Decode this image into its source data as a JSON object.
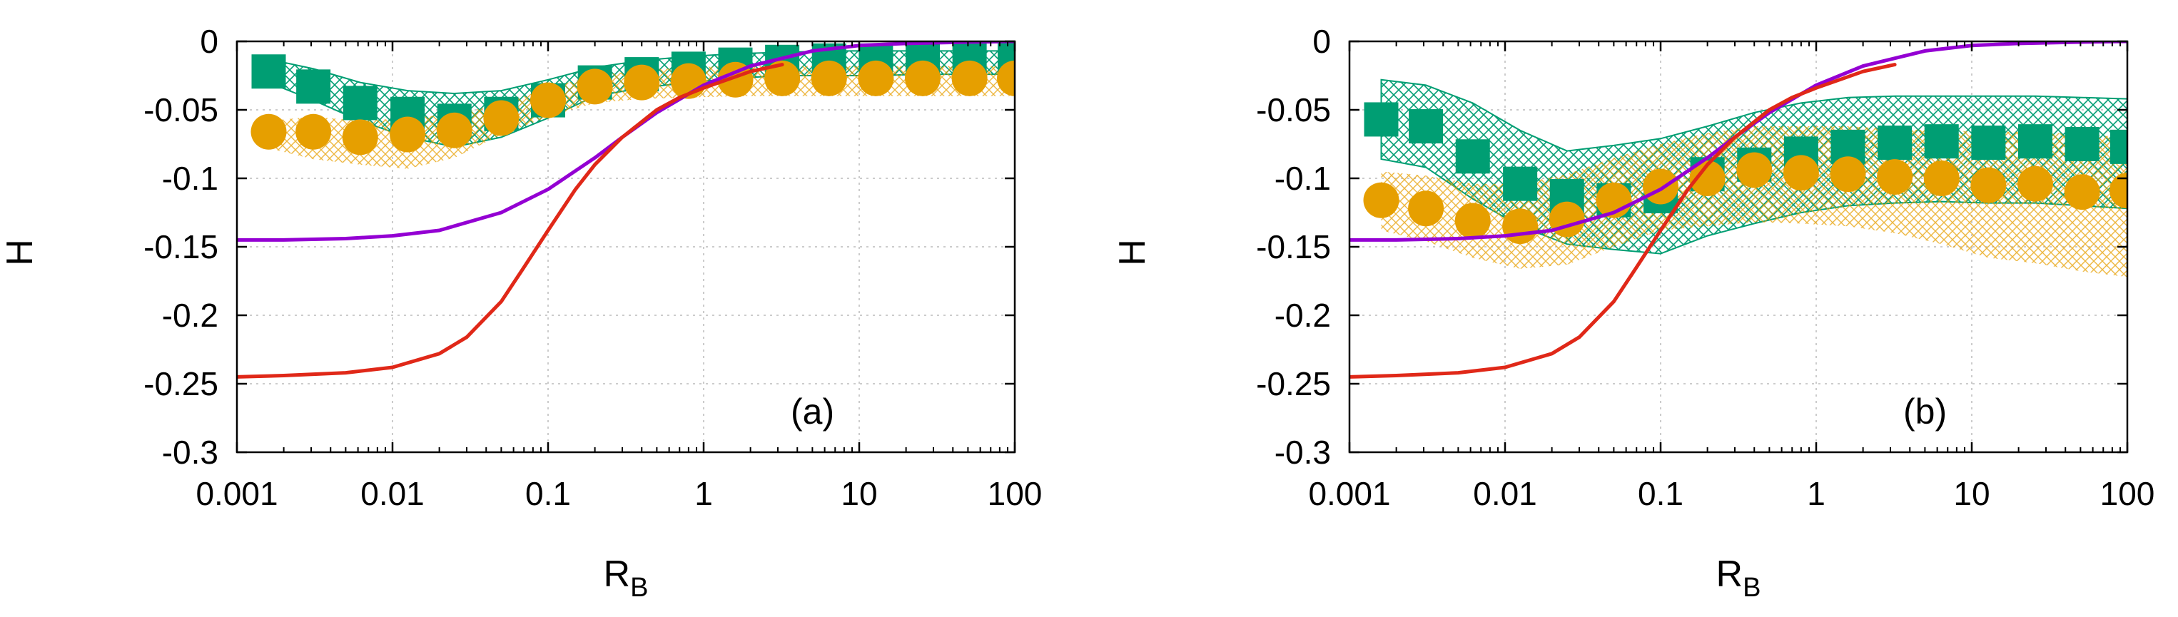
{
  "chart_data": [
    {
      "type": "line",
      "panel_label": "(a)",
      "xlabel": "R",
      "xlabel_sub": "B",
      "ylabel": "H",
      "xscale": "log",
      "xlim": [
        0.001,
        100
      ],
      "ylim": [
        -0.3,
        0
      ],
      "grid": true,
      "x_ticks": [
        "0.001",
        "0.01",
        "0.1",
        "1",
        "10",
        "100"
      ],
      "y_ticks": [
        "-0.3",
        "-0.25",
        "-0.2",
        "-0.15",
        "-0.1",
        "-0.05",
        "0"
      ],
      "series": [
        {
          "name": "green squares",
          "kind": "scatter-square",
          "color": "#009e73",
          "x": [
            0.0016,
            0.0031,
            0.0062,
            0.0125,
            0.025,
            0.05,
            0.1,
            0.2,
            0.4,
            0.8,
            1.6,
            3.2,
            6.4,
            12.8,
            25.6,
            51.2,
            100
          ],
          "y": [
            -0.022,
            -0.033,
            -0.045,
            -0.053,
            -0.058,
            -0.053,
            -0.043,
            -0.03,
            -0.024,
            -0.02,
            -0.017,
            -0.015,
            -0.014,
            -0.014,
            -0.013,
            -0.013,
            -0.013
          ]
        },
        {
          "name": "orange circles",
          "kind": "scatter-circle",
          "color": "#e69f00",
          "x": [
            0.0016,
            0.0031,
            0.0062,
            0.0125,
            0.025,
            0.05,
            0.1,
            0.2,
            0.4,
            0.8,
            1.6,
            3.2,
            6.4,
            12.8,
            25.6,
            51.2,
            100
          ],
          "y": [
            -0.066,
            -0.066,
            -0.07,
            -0.068,
            -0.065,
            -0.056,
            -0.043,
            -0.033,
            -0.03,
            -0.029,
            -0.028,
            -0.027,
            -0.027,
            -0.027,
            -0.027,
            -0.027,
            -0.027
          ]
        },
        {
          "name": "green band",
          "kind": "band",
          "color": "#009e73",
          "x": [
            0.0016,
            0.0031,
            0.0062,
            0.0125,
            0.025,
            0.05,
            0.1,
            0.2,
            0.4,
            0.8,
            1.6,
            3.2,
            6.4,
            12.8,
            25.6,
            51.2,
            100
          ],
          "upper": [
            -0.013,
            -0.02,
            -0.03,
            -0.036,
            -0.038,
            -0.036,
            -0.028,
            -0.019,
            -0.014,
            -0.011,
            -0.009,
            -0.008,
            -0.007,
            -0.007,
            -0.007,
            -0.007,
            -0.007
          ],
          "lower": [
            -0.03,
            -0.043,
            -0.058,
            -0.07,
            -0.077,
            -0.07,
            -0.056,
            -0.04,
            -0.034,
            -0.03,
            -0.027,
            -0.025,
            -0.025,
            -0.025,
            -0.024,
            -0.024,
            -0.024
          ]
        },
        {
          "name": "orange band",
          "kind": "band",
          "color": "#e69f00",
          "x": [
            0.0016,
            0.0031,
            0.0062,
            0.0125,
            0.025,
            0.05,
            0.1,
            0.2,
            0.4,
            0.8,
            1.6,
            3.2,
            6.4,
            12.8,
            25.6,
            51.2,
            100
          ],
          "upper": [
            -0.058,
            -0.055,
            -0.058,
            -0.056,
            -0.053,
            -0.046,
            -0.034,
            -0.025,
            -0.021,
            -0.019,
            -0.018,
            -0.018,
            -0.018,
            -0.018,
            -0.018,
            -0.018,
            -0.018
          ],
          "lower": [
            -0.078,
            -0.086,
            -0.09,
            -0.093,
            -0.085,
            -0.068,
            -0.055,
            -0.045,
            -0.042,
            -0.041,
            -0.04,
            -0.04,
            -0.04,
            -0.04,
            -0.04,
            -0.04,
            -0.04
          ]
        },
        {
          "name": "purple curve",
          "kind": "line",
          "color": "#9400d3",
          "x": [
            0.001,
            0.002,
            0.005,
            0.01,
            0.02,
            0.05,
            0.1,
            0.2,
            0.3,
            0.5,
            1,
            2,
            5,
            10,
            20,
            50,
            100
          ],
          "y": [
            -0.145,
            -0.145,
            -0.144,
            -0.142,
            -0.138,
            -0.125,
            -0.108,
            -0.085,
            -0.07,
            -0.052,
            -0.032,
            -0.018,
            -0.007,
            -0.003,
            -0.0015,
            -0.0005,
            0
          ]
        },
        {
          "name": "red curve",
          "kind": "line",
          "color": "#e02818",
          "x": [
            0.001,
            0.002,
            0.005,
            0.01,
            0.02,
            0.03,
            0.05,
            0.07,
            0.1,
            0.15,
            0.2,
            0.3,
            0.5,
            0.7,
            1,
            1.5,
            2,
            3.2
          ],
          "y": [
            -0.245,
            -0.244,
            -0.242,
            -0.238,
            -0.228,
            -0.216,
            -0.19,
            -0.165,
            -0.138,
            -0.108,
            -0.09,
            -0.07,
            -0.05,
            -0.041,
            -0.034,
            -0.027,
            -0.022,
            -0.017
          ]
        }
      ]
    },
    {
      "type": "line",
      "panel_label": "(b)",
      "xlabel": "R",
      "xlabel_sub": "B",
      "ylabel": "H",
      "xscale": "log",
      "xlim": [
        0.001,
        100
      ],
      "ylim": [
        -0.3,
        0
      ],
      "grid": true,
      "x_ticks": [
        "0.001",
        "0.01",
        "0.1",
        "1",
        "10",
        "100"
      ],
      "y_ticks": [
        "-0.3",
        "-0.25",
        "-0.2",
        "-0.15",
        "-0.1",
        "-0.05",
        "0"
      ],
      "series": [
        {
          "name": "green squares",
          "kind": "scatter-square",
          "color": "#009e73",
          "x": [
            0.0016,
            0.0031,
            0.0062,
            0.0125,
            0.025,
            0.05,
            0.1,
            0.2,
            0.4,
            0.8,
            1.6,
            3.2,
            6.4,
            12.8,
            25.6,
            51.2,
            100
          ],
          "y": [
            -0.057,
            -0.062,
            -0.084,
            -0.104,
            -0.113,
            -0.116,
            -0.113,
            -0.097,
            -0.09,
            -0.082,
            -0.077,
            -0.074,
            -0.073,
            -0.074,
            -0.073,
            -0.075,
            -0.077
          ]
        },
        {
          "name": "orange circles",
          "kind": "scatter-circle",
          "color": "#e69f00",
          "x": [
            0.0016,
            0.0031,
            0.0062,
            0.0125,
            0.025,
            0.05,
            0.1,
            0.2,
            0.4,
            0.8,
            1.6,
            3.2,
            6.4,
            12.8,
            25.6,
            51.2,
            100
          ],
          "y": [
            -0.116,
            -0.122,
            -0.131,
            -0.135,
            -0.13,
            -0.116,
            -0.106,
            -0.1,
            -0.094,
            -0.096,
            -0.097,
            -0.099,
            -0.1,
            -0.105,
            -0.104,
            -0.11,
            -0.109
          ]
        },
        {
          "name": "green band",
          "kind": "band",
          "color": "#009e73",
          "x": [
            0.0016,
            0.0031,
            0.0062,
            0.0125,
            0.025,
            0.05,
            0.1,
            0.2,
            0.4,
            0.8,
            1.6,
            3.2,
            6.4,
            12.8,
            25.6,
            51.2,
            100
          ],
          "upper": [
            -0.028,
            -0.032,
            -0.045,
            -0.065,
            -0.08,
            -0.076,
            -0.071,
            -0.062,
            -0.052,
            -0.045,
            -0.041,
            -0.04,
            -0.04,
            -0.04,
            -0.04,
            -0.041,
            -0.042
          ],
          "lower": [
            -0.086,
            -0.092,
            -0.115,
            -0.135,
            -0.148,
            -0.152,
            -0.155,
            -0.142,
            -0.133,
            -0.125,
            -0.12,
            -0.118,
            -0.117,
            -0.118,
            -0.118,
            -0.12,
            -0.122
          ]
        },
        {
          "name": "orange band",
          "kind": "band",
          "color": "#e69f00",
          "x": [
            0.0016,
            0.0031,
            0.0062,
            0.0125,
            0.025,
            0.05,
            0.1,
            0.2,
            0.4,
            0.8,
            1.6,
            3.2,
            6.4,
            12.8,
            25.6,
            51.2,
            100
          ],
          "upper": [
            -0.095,
            -0.098,
            -0.104,
            -0.104,
            -0.097,
            -0.085,
            -0.075,
            -0.067,
            -0.062,
            -0.062,
            -0.062,
            -0.064,
            -0.065,
            -0.066,
            -0.066,
            -0.068,
            -0.07
          ],
          "lower": [
            -0.138,
            -0.146,
            -0.158,
            -0.166,
            -0.163,
            -0.15,
            -0.138,
            -0.135,
            -0.132,
            -0.133,
            -0.135,
            -0.14,
            -0.148,
            -0.158,
            -0.162,
            -0.168,
            -0.172
          ]
        },
        {
          "name": "purple curve",
          "kind": "line",
          "color": "#9400d3",
          "x": [
            0.001,
            0.002,
            0.005,
            0.01,
            0.02,
            0.05,
            0.1,
            0.2,
            0.3,
            0.5,
            1,
            2,
            5,
            10,
            20,
            50,
            100
          ],
          "y": [
            -0.145,
            -0.145,
            -0.144,
            -0.142,
            -0.138,
            -0.125,
            -0.108,
            -0.085,
            -0.07,
            -0.052,
            -0.032,
            -0.018,
            -0.007,
            -0.003,
            -0.0015,
            -0.0005,
            0
          ]
        },
        {
          "name": "red curve",
          "kind": "line",
          "color": "#e02818",
          "x": [
            0.001,
            0.002,
            0.005,
            0.01,
            0.02,
            0.03,
            0.05,
            0.07,
            0.1,
            0.15,
            0.2,
            0.3,
            0.5,
            0.7,
            1,
            1.5,
            2,
            3.2
          ],
          "y": [
            -0.245,
            -0.244,
            -0.242,
            -0.238,
            -0.228,
            -0.216,
            -0.19,
            -0.165,
            -0.138,
            -0.108,
            -0.09,
            -0.07,
            -0.05,
            -0.041,
            -0.034,
            -0.027,
            -0.022,
            -0.017
          ]
        }
      ]
    }
  ]
}
